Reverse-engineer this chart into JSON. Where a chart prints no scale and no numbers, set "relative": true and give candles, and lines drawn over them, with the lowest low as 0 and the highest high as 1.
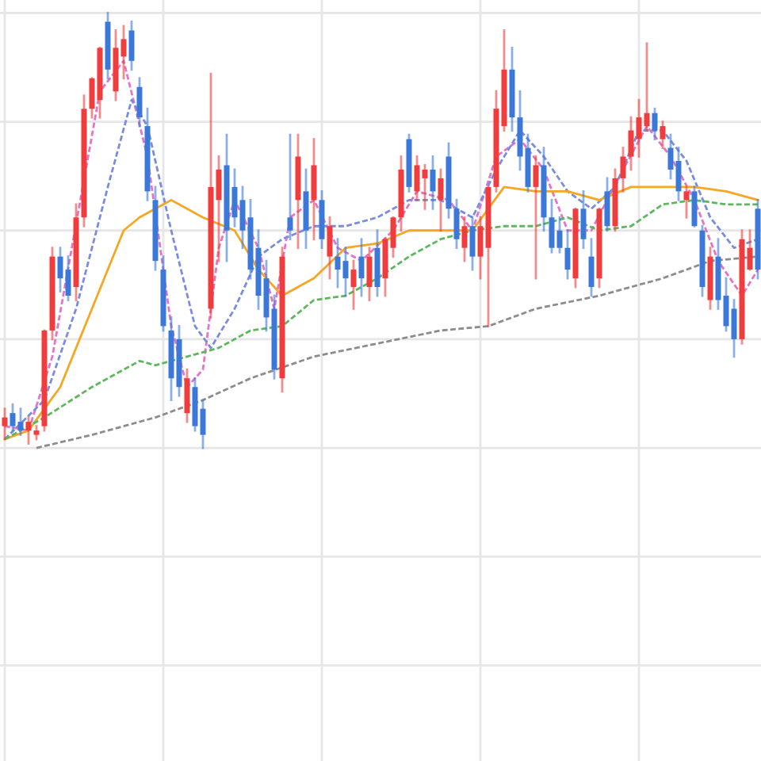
{
  "chart_data": {
    "type": "candlestick",
    "relative": true,
    "grid": true,
    "marker": "none",
    "categories": [
      null,
      null,
      null,
      null,
      null,
      null,
      null,
      null,
      null,
      null,
      null,
      null,
      null,
      null,
      null,
      null,
      null,
      null,
      null,
      null,
      null,
      null,
      null,
      null,
      null,
      null,
      null,
      null,
      null,
      null,
      null,
      null,
      null,
      null,
      null,
      null,
      null,
      null,
      null,
      null,
      null,
      null,
      null,
      null,
      null,
      null,
      null,
      null,
      null,
      null,
      null,
      null,
      null,
      null,
      null,
      null,
      null,
      null,
      null,
      null,
      null,
      null,
      null,
      null,
      null,
      null,
      null,
      null,
      null,
      null,
      null,
      null,
      null,
      null,
      null,
      null,
      null,
      null,
      null,
      null,
      null,
      null,
      null,
      null,
      null,
      null,
      null,
      null,
      null,
      null,
      null,
      null,
      null,
      null,
      null,
      null
    ],
    "ohlc": [
      [
        0.05,
        0.09,
        0.02,
        0.07
      ],
      [
        0.08,
        0.1,
        0.04,
        0.05
      ],
      [
        0.06,
        0.09,
        0.03,
        0.04
      ],
      [
        0.04,
        0.07,
        0.01,
        0.06
      ],
      [
        0.03,
        0.05,
        0.02,
        0.04
      ],
      [
        0.05,
        0.27,
        0.04,
        0.27
      ],
      [
        0.27,
        0.46,
        0.25,
        0.44
      ],
      [
        0.44,
        0.46,
        0.36,
        0.39
      ],
      [
        0.41,
        0.44,
        0.34,
        0.35
      ],
      [
        0.37,
        0.56,
        0.34,
        0.53
      ],
      [
        0.53,
        0.81,
        0.51,
        0.78
      ],
      [
        0.78,
        0.85,
        0.76,
        0.85
      ],
      [
        0.8,
        0.92,
        0.76,
        0.92
      ],
      [
        0.98,
        1.0,
        0.85,
        0.87
      ],
      [
        0.82,
        0.96,
        0.8,
        0.92
      ],
      [
        0.9,
        0.97,
        0.85,
        0.94
      ],
      [
        0.96,
        0.98,
        0.87,
        0.89
      ],
      [
        0.83,
        0.85,
        0.74,
        0.76
      ],
      [
        0.74,
        0.78,
        0.57,
        0.59
      ],
      [
        0.57,
        0.6,
        0.41,
        0.43
      ],
      [
        0.41,
        0.44,
        0.27,
        0.28
      ],
      [
        0.27,
        0.3,
        0.11,
        0.16
      ],
      [
        0.25,
        0.28,
        0.12,
        0.14
      ],
      [
        0.08,
        0.18,
        0.06,
        0.16
      ],
      [
        0.14,
        0.16,
        0.04,
        0.05
      ],
      [
        0.09,
        0.11,
        0.0,
        0.03
      ],
      [
        0.32,
        0.86,
        0.3,
        0.6
      ],
      [
        0.57,
        0.67,
        0.43,
        0.64
      ],
      [
        0.65,
        0.72,
        0.43,
        0.5
      ],
      [
        0.6,
        0.64,
        0.51,
        0.53
      ],
      [
        0.57,
        0.6,
        0.46,
        0.5
      ],
      [
        0.53,
        0.57,
        0.39,
        0.41
      ],
      [
        0.46,
        0.5,
        0.32,
        0.35
      ],
      [
        0.39,
        0.43,
        0.27,
        0.3
      ],
      [
        0.32,
        0.35,
        0.16,
        0.18
      ],
      [
        0.16,
        0.46,
        0.13,
        0.44
      ],
      [
        0.53,
        0.72,
        0.48,
        0.5
      ],
      [
        0.57,
        0.72,
        0.46,
        0.67
      ],
      [
        0.59,
        0.64,
        0.46,
        0.5
      ],
      [
        0.57,
        0.71,
        0.48,
        0.65
      ],
      [
        0.57,
        0.59,
        0.46,
        0.48
      ],
      [
        0.44,
        0.53,
        0.39,
        0.51
      ],
      [
        0.44,
        0.48,
        0.37,
        0.41
      ],
      [
        0.43,
        0.46,
        0.35,
        0.39
      ],
      [
        0.37,
        0.43,
        0.32,
        0.41
      ],
      [
        0.44,
        0.48,
        0.35,
        0.39
      ],
      [
        0.37,
        0.46,
        0.34,
        0.44
      ],
      [
        0.46,
        0.5,
        0.35,
        0.37
      ],
      [
        0.39,
        0.48,
        0.35,
        0.48
      ],
      [
        0.46,
        0.53,
        0.44,
        0.53
      ],
      [
        0.53,
        0.67,
        0.5,
        0.64
      ],
      [
        0.71,
        0.72,
        0.59,
        0.6
      ],
      [
        0.59,
        0.67,
        0.57,
        0.65
      ],
      [
        0.62,
        0.65,
        0.55,
        0.64
      ],
      [
        0.64,
        0.67,
        0.55,
        0.59
      ],
      [
        0.57,
        0.64,
        0.5,
        0.62
      ],
      [
        0.67,
        0.7,
        0.53,
        0.55
      ],
      [
        0.55,
        0.57,
        0.46,
        0.48
      ],
      [
        0.46,
        0.53,
        0.43,
        0.51
      ],
      [
        0.51,
        0.53,
        0.41,
        0.44
      ],
      [
        0.44,
        0.53,
        0.39,
        0.51
      ],
      [
        0.46,
        0.6,
        0.28,
        0.6
      ],
      [
        0.6,
        0.82,
        0.59,
        0.78
      ],
      [
        0.74,
        0.96,
        0.73,
        0.87
      ],
      [
        0.87,
        0.92,
        0.73,
        0.76
      ],
      [
        0.76,
        0.82,
        0.64,
        0.67
      ],
      [
        0.69,
        0.72,
        0.59,
        0.6
      ],
      [
        0.6,
        0.67,
        0.39,
        0.65
      ],
      [
        0.65,
        0.69,
        0.5,
        0.53
      ],
      [
        0.53,
        0.57,
        0.45,
        0.46
      ],
      [
        0.5,
        0.53,
        0.45,
        0.46
      ],
      [
        0.46,
        0.5,
        0.39,
        0.41
      ],
      [
        0.39,
        0.55,
        0.37,
        0.55
      ],
      [
        0.55,
        0.59,
        0.46,
        0.48
      ],
      [
        0.44,
        0.48,
        0.35,
        0.37
      ],
      [
        0.39,
        0.55,
        0.37,
        0.55
      ],
      [
        0.59,
        0.62,
        0.5,
        0.51
      ],
      [
        0.51,
        0.64,
        0.5,
        0.62
      ],
      [
        0.62,
        0.69,
        0.59,
        0.67
      ],
      [
        0.67,
        0.76,
        0.64,
        0.73
      ],
      [
        0.71,
        0.8,
        0.67,
        0.76
      ],
      [
        0.74,
        0.93,
        0.73,
        0.77
      ],
      [
        0.77,
        0.78,
        0.71,
        0.73
      ],
      [
        0.71,
        0.75,
        0.69,
        0.74
      ],
      [
        0.69,
        0.72,
        0.62,
        0.64
      ],
      [
        0.66,
        0.69,
        0.57,
        0.59
      ],
      [
        0.57,
        0.6,
        0.53,
        0.59
      ],
      [
        0.59,
        0.6,
        0.51,
        0.51
      ],
      [
        0.5,
        0.51,
        0.35,
        0.37
      ],
      [
        0.34,
        0.46,
        0.32,
        0.44
      ],
      [
        0.44,
        0.48,
        0.32,
        0.34
      ],
      [
        0.35,
        0.39,
        0.27,
        0.28
      ],
      [
        0.32,
        0.34,
        0.21,
        0.25
      ],
      [
        0.25,
        0.5,
        0.24,
        0.48
      ],
      [
        0.41,
        0.5,
        0.41,
        0.46
      ],
      [
        0.55,
        0.57,
        0.39,
        0.41
      ]
    ],
    "colors": [
      "#f03c3c",
      "#3c78d8",
      "#3c78d8",
      "#f03c3c",
      "#f03c3c",
      "#f03c3c",
      "#f03c3c",
      "#3c78d8",
      "#3c78d8",
      "#f03c3c",
      "#f03c3c",
      "#f03c3c",
      "#f03c3c",
      "#3c78d8",
      "#f03c3c",
      "#f03c3c",
      "#3c78d8",
      "#3c78d8",
      "#3c78d8",
      "#3c78d8",
      "#3c78d8",
      "#3c78d8",
      "#3c78d8",
      "#f03c3c",
      "#3c78d8",
      "#3c78d8",
      "#f03c3c",
      "#f03c3c",
      "#3c78d8",
      "#3c78d8",
      "#3c78d8",
      "#3c78d8",
      "#3c78d8",
      "#3c78d8",
      "#3c78d8",
      "#f03c3c",
      "#3c78d8",
      "#f03c3c",
      "#3c78d8",
      "#f03c3c",
      "#3c78d8",
      "#f03c3c",
      "#3c78d8",
      "#3c78d8",
      "#f03c3c",
      "#3c78d8",
      "#f03c3c",
      "#3c78d8",
      "#f03c3c",
      "#f03c3c",
      "#f03c3c",
      "#3c78d8",
      "#f03c3c",
      "#f03c3c",
      "#3c78d8",
      "#f03c3c",
      "#3c78d8",
      "#3c78d8",
      "#f03c3c",
      "#3c78d8",
      "#f03c3c",
      "#f03c3c",
      "#f03c3c",
      "#f03c3c",
      "#3c78d8",
      "#3c78d8",
      "#3c78d8",
      "#f03c3c",
      "#3c78d8",
      "#3c78d8",
      "#3c78d8",
      "#3c78d8",
      "#f03c3c",
      "#3c78d8",
      "#3c78d8",
      "#f03c3c",
      "#3c78d8",
      "#f03c3c",
      "#f03c3c",
      "#f03c3c",
      "#f03c3c",
      "#f03c3c",
      "#3c78d8",
      "#f03c3c",
      "#3c78d8",
      "#3c78d8",
      "#f03c3c",
      "#3c78d8",
      "#3c78d8",
      "#f03c3c",
      "#3c78d8",
      "#3c78d8",
      "#3c78d8",
      "#f03c3c",
      "#f03c3c",
      "#3c78d8"
    ],
    "series": [
      {
        "type": "line",
        "color": "#e673c8",
        "line_style": "dashed",
        "values": [
          0.05,
          null,
          null,
          0.04,
          null,
          null,
          0.21,
          null,
          null,
          null,
          null,
          null,
          0.82,
          null,
          null,
          0.89,
          null,
          null,
          0.67,
          null,
          null,
          0.28,
          null,
          0.14,
          null,
          0.18,
          null,
          0.46,
          null,
          0.57,
          null,
          null,
          0.46,
          null,
          0.32,
          null,
          0.53,
          null,
          null,
          0.57,
          null,
          null,
          0.46,
          null,
          null,
          0.43,
          null,
          null,
          null,
          0.5,
          null,
          null,
          0.59,
          null,
          null,
          null,
          0.57,
          null,
          null,
          0.5,
          null,
          null,
          0.67,
          null,
          null,
          0.71,
          null,
          null,
          0.64,
          null,
          null,
          0.5,
          null,
          null,
          0.5,
          null,
          null,
          null,
          0.64,
          null,
          null,
          0.74,
          null,
          null,
          0.67,
          null,
          null,
          0.57,
          null,
          null,
          0.43,
          null,
          null,
          0.35,
          null,
          0.41
        ]
      },
      {
        "type": "line",
        "color": "#7a8ce0",
        "line_style": "dashed",
        "values": [
          0.02,
          null,
          null,
          null,
          null,
          0.11,
          null,
          null,
          null,
          0.32,
          null,
          null,
          null,
          0.6,
          null,
          null,
          0.8,
          null,
          0.74,
          null,
          null,
          0.5,
          null,
          null,
          0.28,
          null,
          0.23,
          null,
          null,
          0.32,
          null,
          null,
          0.44,
          null,
          null,
          0.48,
          null,
          null,
          null,
          0.51,
          null,
          null,
          null,
          0.51,
          null,
          null,
          null,
          0.53,
          null,
          null,
          null,
          0.57,
          null,
          null,
          null,
          0.57,
          null,
          null,
          null,
          0.53,
          null,
          null,
          0.64,
          null,
          null,
          0.73,
          null,
          null,
          0.67,
          null,
          null,
          0.59,
          null,
          null,
          0.55,
          null,
          null,
          0.6,
          null,
          null,
          0.73,
          null,
          null,
          0.73,
          null,
          null,
          0.66,
          null,
          null,
          0.53,
          null,
          null,
          0.46,
          null,
          null,
          0.48
        ]
      },
      {
        "type": "line",
        "color": "#f5a623",
        "line_style": "solid",
        "values": [
          0.02,
          null,
          null,
          0.04,
          null,
          null,
          null,
          0.14,
          null,
          null,
          null,
          0.32,
          null,
          null,
          null,
          0.5,
          null,
          0.53,
          null,
          null,
          null,
          0.57,
          null,
          null,
          null,
          0.53,
          null,
          null,
          null,
          0.5,
          null,
          null,
          0.41,
          null,
          null,
          0.35,
          null,
          null,
          null,
          0.39,
          null,
          null,
          null,
          0.46,
          null,
          null,
          null,
          0.47,
          null,
          null,
          null,
          0.5,
          null,
          null,
          null,
          0.5,
          null,
          null,
          null,
          0.5,
          null,
          null,
          null,
          0.6,
          null,
          null,
          null,
          0.59,
          null,
          null,
          null,
          0.59,
          null,
          null,
          null,
          0.57,
          null,
          null,
          null,
          0.6,
          null,
          null,
          null,
          0.6,
          null,
          null,
          null,
          0.6,
          null,
          null,
          null,
          0.59,
          null,
          null,
          null,
          0.57
        ]
      },
      {
        "type": "line",
        "color": "#5cb85c",
        "line_style": "dashed",
        "values": [
          0.02,
          null,
          null,
          null,
          null,
          0.07,
          null,
          null,
          null,
          null,
          null,
          0.14,
          null,
          null,
          null,
          null,
          null,
          0.2,
          null,
          0.19,
          null,
          null,
          null,
          0.21,
          null,
          null,
          null,
          0.23,
          null,
          null,
          null,
          0.27,
          null,
          null,
          null,
          0.28,
          null,
          null,
          null,
          0.34,
          null,
          null,
          null,
          0.35,
          null,
          null,
          null,
          0.39,
          null,
          null,
          null,
          0.44,
          null,
          null,
          null,
          0.48,
          null,
          null,
          null,
          0.5,
          null,
          null,
          null,
          0.51,
          null,
          null,
          null,
          0.51,
          null,
          null,
          null,
          0.53,
          null,
          null,
          null,
          0.5,
          null,
          null,
          null,
          0.51,
          null,
          null,
          null,
          0.56,
          null,
          null,
          null,
          0.57,
          null,
          null,
          null,
          0.56,
          null,
          null,
          null,
          0.56
        ]
      },
      {
        "type": "line",
        "color": "#8c8c8c",
        "line_style": "dashed",
        "values": [
          null,
          null,
          null,
          null,
          0.0,
          null,
          null,
          null,
          null,
          null,
          null,
          0.03,
          null,
          null,
          null,
          null,
          null,
          null,
          null,
          0.07,
          null,
          null,
          null,
          null,
          null,
          0.11,
          null,
          null,
          null,
          null,
          null,
          0.16,
          null,
          null,
          null,
          null,
          null,
          null,
          null,
          0.21,
          null,
          null,
          null,
          null,
          null,
          null,
          null,
          0.24,
          null,
          null,
          null,
          null,
          null,
          null,
          null,
          0.27,
          null,
          null,
          null,
          null,
          null,
          0.28,
          null,
          null,
          null,
          null,
          null,
          0.32,
          null,
          null,
          null,
          null,
          null,
          null,
          null,
          0.35,
          null,
          null,
          null,
          null,
          null,
          null,
          null,
          0.39,
          null,
          null,
          null,
          null,
          null,
          0.43,
          null,
          null,
          null,
          null,
          null,
          0.44
        ]
      }
    ]
  }
}
